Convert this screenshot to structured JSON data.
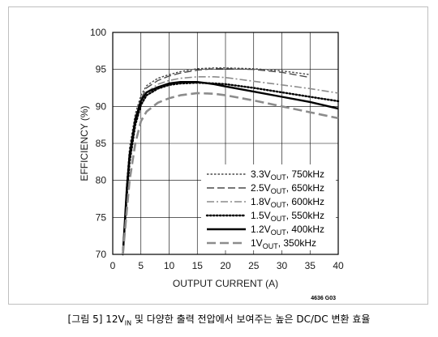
{
  "caption": {
    "prefix": "[그림 5] 12V",
    "subscript": "IN",
    "suffix": " 및 다양한 출력 전압에서 보여주는 높은 DC/DC 변환 효율"
  },
  "figure_code": "4636 G03",
  "chart_data": {
    "type": "line",
    "title": "",
    "xlabel": "OUTPUT CURRENT (A)",
    "ylabel": "EFFICIENCY (%)",
    "xlim": [
      0,
      40
    ],
    "ylim": [
      70,
      100
    ],
    "xticks": [
      "0",
      "5",
      "10",
      "15",
      "20",
      "25",
      "30",
      "35",
      "40"
    ],
    "yticks": [
      "70",
      "75",
      "80",
      "85",
      "90",
      "95",
      "100"
    ],
    "grid": true,
    "legend_position": "bottom-right",
    "series": [
      {
        "name": "3.3V_OUT, 750kHz",
        "label_main": "3.3V",
        "label_sub": "OUT",
        "label_tail": ", 750kHz",
        "style": "dotted-short",
        "color": "#4a4a4a",
        "x": [
          1.8,
          2.5,
          3,
          4,
          5,
          6,
          8,
          10,
          12,
          15,
          18,
          20,
          25,
          30,
          35
        ],
        "y": [
          70,
          80,
          84.5,
          89,
          91.5,
          92.8,
          93.8,
          94.3,
          94.7,
          95.1,
          95.2,
          95.2,
          95.1,
          94.8,
          94.3
        ]
      },
      {
        "name": "2.5V_OUT, 650kHz",
        "label_main": "2.5V",
        "label_sub": "OUT",
        "label_tail": ", 650kHz",
        "style": "long-dash-thin",
        "color": "#4a4a4a",
        "x": [
          1.8,
          2.5,
          3,
          4,
          5,
          6,
          8,
          10,
          12,
          15,
          18,
          20,
          25,
          30,
          35
        ],
        "y": [
          70,
          79,
          83.5,
          88.5,
          91,
          92.5,
          93.5,
          94.1,
          94.5,
          94.9,
          95.1,
          95.1,
          95.0,
          94.6,
          93.9
        ]
      },
      {
        "name": "1.8V_OUT, 600kHz",
        "label_main": "1.8V",
        "label_sub": "OUT",
        "label_tail": ", 600kHz",
        "style": "dash-dot",
        "color": "#8c8c8c",
        "x": [
          1.8,
          2.5,
          3,
          4,
          5,
          6,
          8,
          10,
          12,
          15,
          18,
          20,
          25,
          30,
          35,
          40
        ],
        "y": [
          70,
          78.5,
          83,
          88,
          90.6,
          91.9,
          93,
          93.5,
          93.8,
          94.0,
          94.0,
          93.9,
          93.4,
          92.9,
          92.4,
          91.8
        ]
      },
      {
        "name": "1.5V_OUT, 550kHz",
        "label_main": "1.5V",
        "label_sub": "OUT",
        "label_tail": ", 550kHz",
        "style": "dotted-heavy",
        "color": "#000000",
        "x": [
          1.8,
          2.5,
          3,
          4,
          5,
          6,
          8,
          10,
          12,
          15,
          18,
          20,
          25,
          30,
          35,
          40
        ],
        "y": [
          70,
          78,
          82.5,
          87.5,
          90.2,
          91.5,
          92.4,
          92.9,
          93.1,
          93.2,
          93.1,
          93.0,
          92.5,
          91.9,
          91.3,
          90.7
        ]
      },
      {
        "name": "1.2V_OUT, 400kHz",
        "label_main": "1.2V",
        "label_sub": "OUT",
        "label_tail": ", 400kHz",
        "style": "solid-heavy",
        "color": "#000000",
        "x": [
          1.8,
          2.5,
          3,
          4,
          5,
          6,
          8,
          10,
          12,
          15,
          18,
          20,
          25,
          30,
          35,
          40
        ],
        "y": [
          70,
          79,
          83.5,
          88.2,
          90.8,
          91.9,
          92.6,
          93.1,
          93.3,
          93.3,
          93.0,
          92.7,
          92.0,
          91.3,
          90.6,
          89.7
        ]
      },
      {
        "name": "1V_OUT, 350kHz",
        "label_main": "1V",
        "label_sub": "OUT",
        "label_tail": ", 350kHz",
        "style": "long-dash-heavy",
        "color": "#8c8c8c",
        "x": [
          1.8,
          2.5,
          3,
          4,
          5,
          6,
          8,
          10,
          12,
          15,
          18,
          20,
          25,
          30,
          35,
          40
        ],
        "y": [
          70,
          76,
          80,
          85,
          88,
          89.3,
          90.5,
          91.1,
          91.5,
          91.8,
          91.7,
          91.5,
          90.8,
          90.0,
          89.2,
          88.4
        ]
      }
    ]
  }
}
